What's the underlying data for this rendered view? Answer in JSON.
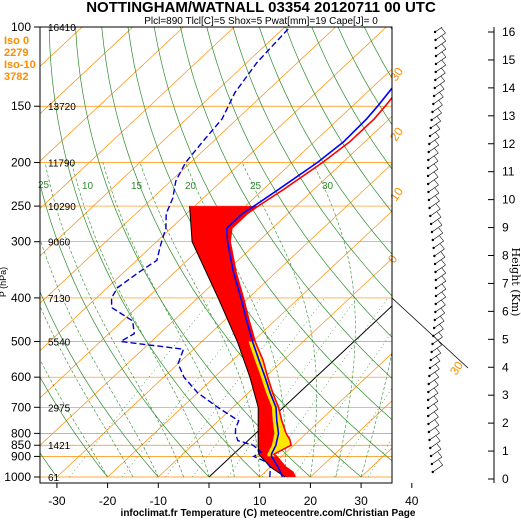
{
  "header": {
    "title": "NOTTINGHAM/WATNALL 03354 20120711 00 UTC",
    "subtitle": "Plcl=890 Tlcl[C]=5 Shox=5 Pwat[mm]=19 Cape[J]= 0"
  },
  "footer": "infoclimat.fr Temperature (C) meteocentre.com/Christian Page",
  "levels_box": {
    "iso0_label": "Iso 0",
    "iso0_value": "2279",
    "iso10_label": "Iso-10",
    "iso10_value": "3782"
  },
  "colors": {
    "temperature": "#ff0000",
    "dewpoint": "#0000ff",
    "wetbulb": "#0000ff",
    "dewpoint_dashed": "#0000cc",
    "isotherm": "#ff8c00",
    "isobar": "#ff8c00",
    "dry_adiabat": "#2e8b2e",
    "moist_adiabat": "#2e8b2e",
    "mixing_ratio": "#2e8b2e",
    "instability_fill": "#ff0000",
    "stability_fill": "#ffff00"
  },
  "chart_data": {
    "type": "line",
    "subtype": "skew-T log-p sounding",
    "xlabel": "Temperature (C)",
    "ylabel": "P (hPa)",
    "y2label": "Height (Km)",
    "x_ticks": [
      -30,
      -20,
      -10,
      0,
      10,
      20,
      30,
      40
    ],
    "pressure_ticks": [
      100,
      150,
      200,
      250,
      300,
      400,
      500,
      600,
      700,
      800,
      850,
      900,
      1000
    ],
    "height_ticks": [
      0,
      1,
      2,
      3,
      4,
      5,
      6,
      7,
      8,
      9,
      10,
      11,
      12,
      13,
      14,
      15,
      16
    ],
    "geopotential_labels": [
      {
        "p": 100,
        "z": "16410"
      },
      {
        "p": 150,
        "z": "13720"
      },
      {
        "p": 200,
        "z": "11790"
      },
      {
        "p": 250,
        "z": "10290"
      },
      {
        "p": 300,
        "z": "9060"
      },
      {
        "p": 400,
        "z": "7130"
      },
      {
        "p": 500,
        "z": "5540"
      },
      {
        "p": 700,
        "z": "2975"
      },
      {
        "p": 850,
        "z": "1421"
      },
      {
        "p": 1000,
        "z": "61"
      }
    ],
    "mixing_ratio_labels": [
      "25",
      "10",
      "15",
      "20",
      "25",
      "30"
    ],
    "series": [
      {
        "key": "temperature",
        "points": [
          [
            1000,
            17
          ],
          [
            975,
            15.5
          ],
          [
            950,
            13
          ],
          [
            925,
            11
          ],
          [
            900,
            9
          ],
          [
            890,
            8
          ],
          [
            850,
            9.5
          ],
          [
            825,
            8
          ],
          [
            800,
            6
          ],
          [
            750,
            2.5
          ],
          [
            700,
            -1
          ],
          [
            650,
            -5.2
          ],
          [
            600,
            -9.5
          ],
          [
            550,
            -14
          ],
          [
            500,
            -19.5
          ],
          [
            450,
            -25
          ],
          [
            400,
            -31
          ],
          [
            350,
            -38
          ],
          [
            300,
            -45.5
          ],
          [
            280,
            -48
          ],
          [
            260,
            -48
          ],
          [
            250,
            -47.5
          ],
          [
            230,
            -46
          ],
          [
            200,
            -44
          ],
          [
            180,
            -43
          ],
          [
            160,
            -43
          ],
          [
            150,
            -43.5
          ],
          [
            130,
            -45
          ],
          [
            120,
            -45
          ],
          [
            100,
            -50
          ]
        ]
      },
      {
        "key": "wetbulb",
        "points": [
          [
            1000,
            14.5
          ],
          [
            950,
            11.5
          ],
          [
            900,
            8
          ],
          [
            890,
            7.5
          ],
          [
            850,
            6.5
          ],
          [
            800,
            4.5
          ],
          [
            750,
            1.5
          ],
          [
            700,
            -1.5
          ],
          [
            650,
            -5.7
          ],
          [
            600,
            -10
          ],
          [
            550,
            -14.8
          ],
          [
            500,
            -20
          ],
          [
            450,
            -25.5
          ],
          [
            400,
            -31.5
          ],
          [
            350,
            -38.5
          ],
          [
            300,
            -46
          ],
          [
            280,
            -49
          ],
          [
            260,
            -49
          ],
          [
            250,
            -48.3
          ],
          [
            230,
            -47
          ],
          [
            200,
            -45
          ],
          [
            180,
            -44.2
          ],
          [
            160,
            -44.5
          ],
          [
            150,
            -45
          ],
          [
            130,
            -46.5
          ],
          [
            120,
            -46.5
          ],
          [
            100,
            -51
          ]
        ]
      },
      {
        "key": "dewpoint",
        "points": [
          [
            1000,
            12
          ],
          [
            975,
            11
          ],
          [
            950,
            10
          ],
          [
            925,
            8
          ],
          [
            900,
            4.5
          ],
          [
            880,
            5
          ],
          [
            850,
            2
          ],
          [
            830,
            -2
          ],
          [
            800,
            -4
          ],
          [
            780,
            -5
          ],
          [
            750,
            -6
          ],
          [
            700,
            -13
          ],
          [
            650,
            -20
          ],
          [
            600,
            -26
          ],
          [
            560,
            -30
          ],
          [
            520,
            -32
          ],
          [
            500,
            -46
          ],
          [
            480,
            -45
          ],
          [
            450,
            -48
          ],
          [
            420,
            -55
          ],
          [
            400,
            -57
          ],
          [
            380,
            -58
          ],
          [
            350,
            -57
          ],
          [
            330,
            -56
          ],
          [
            310,
            -58
          ],
          [
            300,
            -59
          ],
          [
            280,
            -61
          ],
          [
            260,
            -64
          ],
          [
            240,
            -66
          ],
          [
            220,
            -69
          ],
          [
            200,
            -71
          ],
          [
            180,
            -72
          ],
          [
            160,
            -73
          ],
          [
            140,
            -76
          ],
          [
            120,
            -78
          ],
          [
            100,
            -79
          ]
        ]
      },
      {
        "key": "parcel",
        "points": [
          [
            1000,
            15
          ],
          [
            950,
            10
          ],
          [
            890,
            5
          ],
          [
            850,
            3
          ],
          [
            800,
            0.5
          ],
          [
            700,
            -5
          ],
          [
            600,
            -13
          ],
          [
            500,
            -23
          ],
          [
            400,
            -36
          ],
          [
            300,
            -53
          ],
          [
            250,
            -61
          ]
        ]
      }
    ]
  }
}
